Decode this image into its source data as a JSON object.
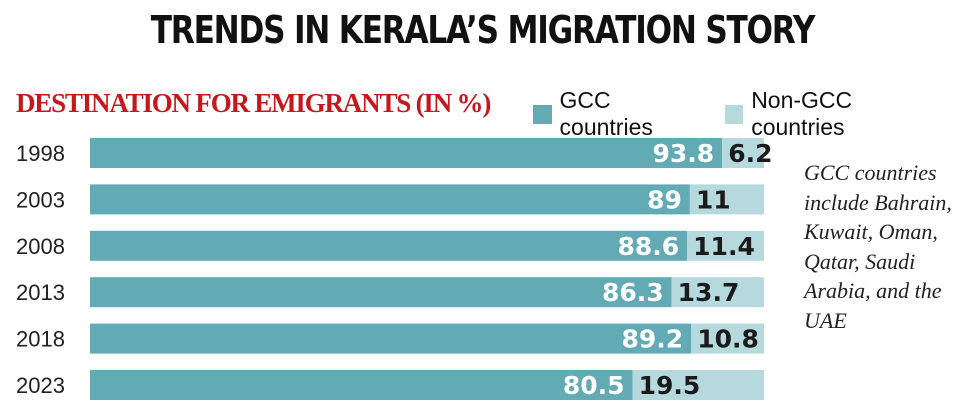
{
  "header": {
    "title": "TRENDS IN KERALA’S MIGRATION STORY",
    "subtitle": "DESTINATION FOR EMIGRANTS (IN %)"
  },
  "note": "GCC countries include Bahrain, Kuwait, Oman, Qatar, Saudi Arabia, and the UAE",
  "chart_data": {
    "type": "bar",
    "orientation": "horizontal",
    "stacked": true,
    "title": "DESTINATION FOR EMIGRANTS (IN %)",
    "categories": [
      "1998",
      "2003",
      "2008",
      "2013",
      "2018",
      "2023"
    ],
    "series": [
      {
        "name": "GCC countries",
        "color": "#62abb5",
        "values": [
          93.8,
          89,
          88.6,
          86.3,
          89.2,
          80.5
        ]
      },
      {
        "name": "Non-GCC countries",
        "color": "#b5d9dd",
        "values": [
          6.2,
          11,
          11.4,
          13.7,
          10.8,
          19.5
        ]
      }
    ],
    "xlim": [
      0,
      100
    ],
    "legend": "top-right",
    "grid": false
  }
}
